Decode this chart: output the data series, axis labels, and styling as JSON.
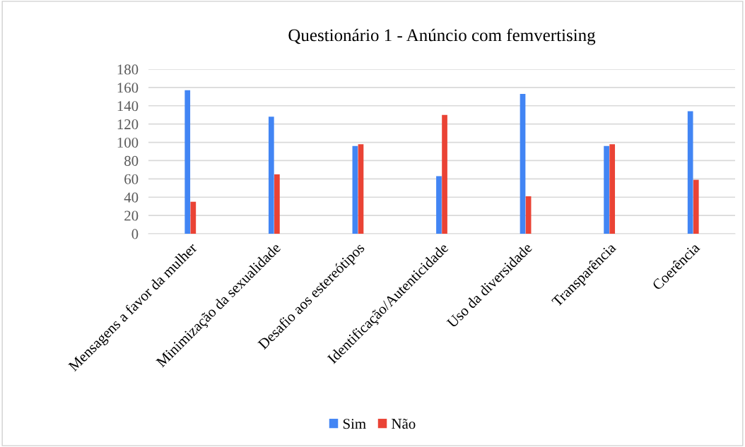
{
  "chart_data": {
    "type": "bar",
    "title": "Questionário 1 - Anúncio com femvertising",
    "categories": [
      "Mensagens a favor da mulher",
      "Minimização da sexualidade",
      "Desafio aos estereótipos",
      "Identificação/Autenticidade",
      "Uso da diversidade",
      "Transparência",
      "Coerência"
    ],
    "series": [
      {
        "name": "Sim",
        "color": "#4285f4",
        "values": [
          157,
          128,
          96,
          63,
          153,
          96,
          134
        ]
      },
      {
        "name": "Não",
        "color": "#ea4335",
        "values": [
          35,
          65,
          98,
          130,
          41,
          98,
          59
        ]
      }
    ],
    "ylim": [
      0,
      180
    ],
    "yticks": [
      0,
      20,
      40,
      60,
      80,
      100,
      120,
      140,
      160,
      180
    ],
    "grid": "y",
    "legend": "bottom"
  }
}
